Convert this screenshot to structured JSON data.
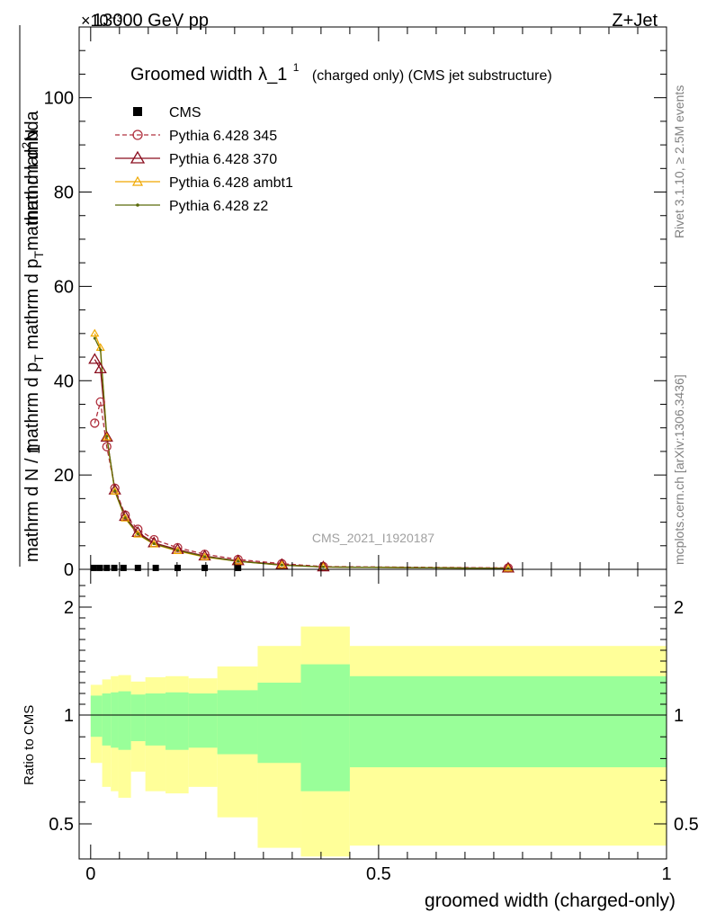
{
  "header": {
    "energy_label": "13000 GeV pp",
    "process_label": "Z+Jet",
    "exponent_label": "×10⁻³"
  },
  "side_text": {
    "rivet": "Rivet 3.1.10, ≥ 2.5M events",
    "mcplots": "mcplots.cern.ch [arXiv:1306.3436]"
  },
  "watermark": "CMS_2021_I1920187",
  "colors": {
    "cms": "#000000",
    "p345": "#b0303e",
    "p370": "#8a0d1e",
    "ambt1": "#f0a800",
    "z2": "#5a6a0a",
    "band_stat": "#99ff99",
    "band_total": "#ffff99"
  },
  "chart_data": [
    {
      "type": "line",
      "title": "Groomed width λ_1¹ (charged only) (CMS jet substructure)",
      "title_main": "Groomed width",
      "title_lambda": "λ_1",
      "title_sup": "1",
      "title_sub": "(charged only) (CMS jet substructure)",
      "ylabel": "1 / (mathrm d N / mathrm d p_T) · mathrm d²N / (mathrm d p_T mathrm d lambda)",
      "ylabel_num": "1",
      "ylabel_frac1": "mathrm d N / mathrm d p",
      "ylabel_frac1_sub": "T",
      "ylabel_frac2_num": "mathrm d",
      "ylabel_frac2_sup": "2",
      "ylabel_frac2_num2": "N",
      "ylabel_frac2_den": "mathrm d p",
      "ylabel_frac2_den_sub": "T",
      "ylabel_frac2_den2": "mathrm d lambda",
      "xlim": [
        -0.02,
        1.0
      ],
      "ylim": [
        0,
        115
      ],
      "y_unit_exponent": -3,
      "yticks": [
        0,
        20,
        40,
        60,
        80,
        100
      ],
      "legend_position": "top-left",
      "series": [
        {
          "name": "CMS",
          "marker": "square",
          "x": [
            0.005,
            0.016,
            0.028,
            0.041,
            0.057,
            0.082,
            0.113,
            0.151,
            0.198,
            0.256
          ],
          "y": [
            0.3,
            0.3,
            0.3,
            0.3,
            0.3,
            0.3,
            0.3,
            0.3,
            0.3,
            0.3
          ]
        },
        {
          "name": "Pythia 6.428 345",
          "marker": "circle",
          "dashed": true,
          "x": [
            0.007,
            0.017,
            0.028,
            0.042,
            0.06,
            0.082,
            0.11,
            0.151,
            0.198,
            0.256,
            0.332,
            0.404,
            0.725
          ],
          "y": [
            31.0,
            35.5,
            26.0,
            17.2,
            11.5,
            8.5,
            6.3,
            4.6,
            3.2,
            2.1,
            1.2,
            0.6,
            0.3
          ]
        },
        {
          "name": "Pythia 6.428 370",
          "marker": "triangle",
          "x": [
            0.007,
            0.017,
            0.028,
            0.042,
            0.06,
            0.082,
            0.11,
            0.151,
            0.198,
            0.256,
            0.332,
            0.404,
            0.725
          ],
          "y": [
            44.5,
            42.5,
            28.0,
            16.8,
            11.2,
            7.8,
            5.6,
            4.2,
            2.8,
            1.8,
            1.0,
            0.5,
            0.25
          ]
        },
        {
          "name": "Pythia 6.428 ambt1",
          "marker": "triangle-small",
          "x": [
            0.007,
            0.017,
            0.028,
            0.042,
            0.06,
            0.082,
            0.11,
            0.151,
            0.198,
            0.256,
            0.332,
            0.404,
            0.725
          ],
          "y": [
            50.0,
            47.0,
            28.0,
            16.5,
            10.8,
            7.4,
            5.3,
            3.9,
            2.6,
            1.7,
            0.9,
            0.5,
            0.2
          ]
        },
        {
          "name": "Pythia 6.428 z2",
          "marker": "dot",
          "x": [
            0.007,
            0.017,
            0.028,
            0.042,
            0.06,
            0.082,
            0.11,
            0.151,
            0.198,
            0.256,
            0.332,
            0.404,
            0.725
          ],
          "y": [
            49.0,
            46.5,
            28.2,
            16.6,
            10.9,
            7.5,
            5.4,
            4.0,
            2.7,
            1.7,
            0.9,
            0.5,
            0.2
          ]
        }
      ]
    },
    {
      "type": "area",
      "ylabel": "Ratio to CMS",
      "xlabel": "groomed width (charged-only)",
      "xlim": [
        -0.02,
        1.0
      ],
      "ylim": [
        0.35,
        2.25
      ],
      "yticks": [
        0.5,
        1,
        2
      ],
      "ytick_labels": [
        "0.5",
        "1",
        "2"
      ],
      "xticks": [
        0,
        0.5,
        1
      ],
      "xtick_labels": [
        "0",
        "0.5",
        "1"
      ],
      "reference_line": 1,
      "bins": [
        {
          "lo": 0.0,
          "hi": 0.02,
          "stat_lo": 0.9,
          "stat_hi": 1.18,
          "tot_lo": 0.78,
          "tot_hi": 1.28
        },
        {
          "lo": 0.02,
          "hi": 0.035,
          "stat_lo": 0.86,
          "stat_hi": 1.2,
          "tot_lo": 0.67,
          "tot_hi": 1.33
        },
        {
          "lo": 0.035,
          "hi": 0.048,
          "stat_lo": 0.85,
          "stat_hi": 1.21,
          "tot_lo": 0.65,
          "tot_hi": 1.36
        },
        {
          "lo": 0.048,
          "hi": 0.07,
          "stat_lo": 0.84,
          "stat_hi": 1.22,
          "tot_lo": 0.62,
          "tot_hi": 1.37
        },
        {
          "lo": 0.07,
          "hi": 0.095,
          "stat_lo": 0.88,
          "stat_hi": 1.19,
          "tot_lo": 0.74,
          "tot_hi": 1.31
        },
        {
          "lo": 0.095,
          "hi": 0.13,
          "stat_lo": 0.86,
          "stat_hi": 1.2,
          "tot_lo": 0.65,
          "tot_hi": 1.35
        },
        {
          "lo": 0.13,
          "hi": 0.17,
          "stat_lo": 0.84,
          "stat_hi": 1.21,
          "tot_lo": 0.64,
          "tot_hi": 1.36
        },
        {
          "lo": 0.17,
          "hi": 0.22,
          "stat_lo": 0.85,
          "stat_hi": 1.2,
          "tot_lo": 0.67,
          "tot_hi": 1.34
        },
        {
          "lo": 0.22,
          "hi": 0.29,
          "stat_lo": 0.82,
          "stat_hi": 1.23,
          "tot_lo": 0.53,
          "tot_hi": 1.45
        },
        {
          "lo": 0.29,
          "hi": 0.365,
          "stat_lo": 0.78,
          "stat_hi": 1.3,
          "tot_lo": 0.39,
          "tot_hi": 1.64
        },
        {
          "lo": 0.365,
          "hi": 0.45,
          "stat_lo": 0.65,
          "stat_hi": 1.47,
          "tot_lo": 0.35,
          "tot_hi": 1.82
        },
        {
          "lo": 0.45,
          "hi": 1.0,
          "stat_lo": 0.76,
          "stat_hi": 1.36,
          "tot_lo": 0.4,
          "tot_hi": 1.64
        }
      ]
    }
  ]
}
